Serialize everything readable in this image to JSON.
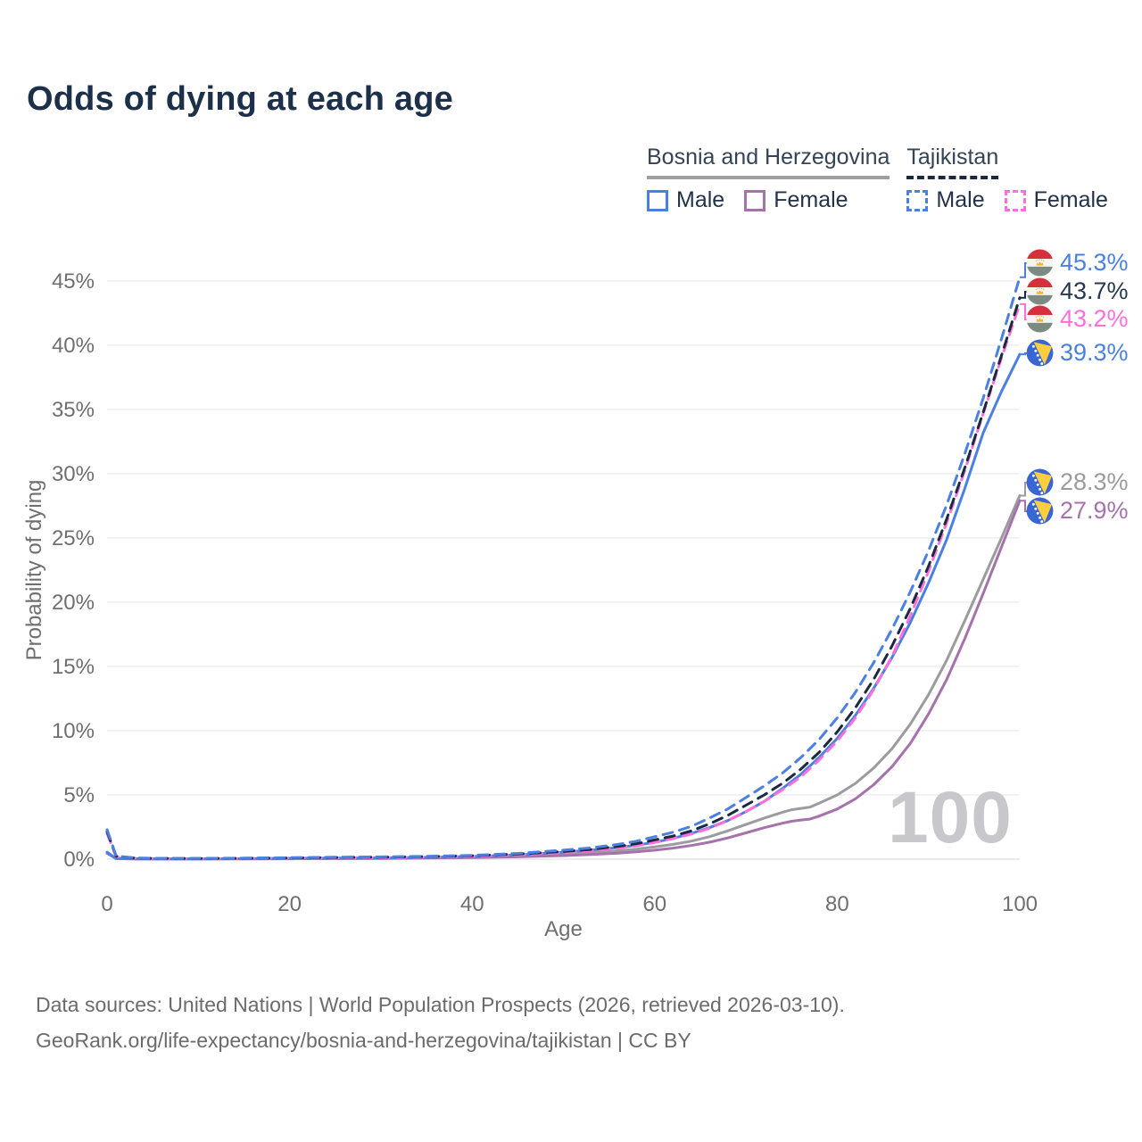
{
  "header": {
    "title": "Odds of dying at each age"
  },
  "legend": {
    "groups": [
      {
        "country": "Bosnia and Herzegovina",
        "line_style": "solid",
        "line_color": "#9e9ea3",
        "items": [
          {
            "label": "Male",
            "color": "#4a80e2",
            "box_style": "solid"
          },
          {
            "label": "Female",
            "color": "#a572ab",
            "box_style": "solid"
          }
        ]
      },
      {
        "country": "Tajikistan",
        "line_style": "dashed",
        "line_color": "#1b2940",
        "items": [
          {
            "label": "Male",
            "color": "#4a80e2",
            "box_style": "dashed"
          },
          {
            "label": "Female",
            "color": "#ff6fdb",
            "box_style": "dashed"
          }
        ]
      }
    ]
  },
  "footer": {
    "line1": "Data sources: United Nations | World Population Prospects (2026, retrieved 2026-03-10).",
    "line2": "GeoRank.org/life-expectancy/bosnia-and-herzegovina/tajikistan | CC BY"
  },
  "chart_data": {
    "type": "line",
    "title": "Odds of dying at each age",
    "xlabel": "Age",
    "ylabel": "Probability of dying",
    "xlim": [
      0,
      100
    ],
    "ylim_pct": [
      0,
      47
    ],
    "x_ticks": [
      0,
      20,
      40,
      60,
      80,
      100
    ],
    "y_ticks": [
      {
        "value": 0,
        "label": "0%"
      },
      {
        "value": 5,
        "label": "5%"
      },
      {
        "value": 10,
        "label": "10%"
      },
      {
        "value": 15,
        "label": "15%"
      },
      {
        "value": 20,
        "label": "20%"
      },
      {
        "value": 25,
        "label": "25%"
      },
      {
        "value": 30,
        "label": "30%"
      },
      {
        "value": 35,
        "label": "35%"
      },
      {
        "value": 40,
        "label": "40%"
      },
      {
        "value": 45,
        "label": "45%"
      }
    ],
    "grid": true,
    "legend_position": "top-right",
    "watermark": "100",
    "series": [
      {
        "id": "ba-both",
        "name": "Bosnia and Herzegovina",
        "sex": "Both",
        "color": "#9b9ba0",
        "style": "solid",
        "end_value_pct": 28.3,
        "points": [
          [
            0,
            0.5
          ],
          [
            1,
            0.05
          ],
          [
            3,
            0.03
          ],
          [
            5,
            0.02
          ],
          [
            10,
            0.02
          ],
          [
            15,
            0.03
          ],
          [
            20,
            0.05
          ],
          [
            25,
            0.06
          ],
          [
            30,
            0.08
          ],
          [
            35,
            0.11
          ],
          [
            40,
            0.16
          ],
          [
            45,
            0.25
          ],
          [
            50,
            0.4
          ],
          [
            53,
            0.5
          ],
          [
            56,
            0.65
          ],
          [
            58,
            0.78
          ],
          [
            60,
            0.95
          ],
          [
            62,
            1.15
          ],
          [
            64,
            1.4
          ],
          [
            66,
            1.75
          ],
          [
            68,
            2.2
          ],
          [
            70,
            2.7
          ],
          [
            72,
            3.2
          ],
          [
            74,
            3.65
          ],
          [
            75,
            3.85
          ],
          [
            76,
            3.95
          ],
          [
            77,
            4.05
          ],
          [
            78,
            4.35
          ],
          [
            80,
            5.0
          ],
          [
            82,
            5.9
          ],
          [
            84,
            7.1
          ],
          [
            86,
            8.6
          ],
          [
            88,
            10.5
          ],
          [
            90,
            12.8
          ],
          [
            92,
            15.5
          ],
          [
            94,
            18.6
          ],
          [
            96,
            21.8
          ],
          [
            98,
            25.0
          ],
          [
            100,
            28.3
          ]
        ]
      },
      {
        "id": "ba-female",
        "name": "Bosnia and Herzegovina",
        "sex": "Female",
        "color": "#a572ab",
        "style": "solid",
        "end_value_pct": 27.9,
        "points": [
          [
            0,
            0.45
          ],
          [
            1,
            0.04
          ],
          [
            3,
            0.02
          ],
          [
            5,
            0.015
          ],
          [
            10,
            0.015
          ],
          [
            15,
            0.02
          ],
          [
            20,
            0.03
          ],
          [
            25,
            0.04
          ],
          [
            30,
            0.05
          ],
          [
            35,
            0.08
          ],
          [
            40,
            0.12
          ],
          [
            45,
            0.18
          ],
          [
            50,
            0.28
          ],
          [
            53,
            0.36
          ],
          [
            56,
            0.47
          ],
          [
            58,
            0.57
          ],
          [
            60,
            0.7
          ],
          [
            62,
            0.86
          ],
          [
            64,
            1.06
          ],
          [
            66,
            1.32
          ],
          [
            68,
            1.65
          ],
          [
            70,
            2.05
          ],
          [
            72,
            2.45
          ],
          [
            74,
            2.8
          ],
          [
            75,
            2.95
          ],
          [
            76,
            3.05
          ],
          [
            77,
            3.12
          ],
          [
            78,
            3.35
          ],
          [
            80,
            3.9
          ],
          [
            82,
            4.7
          ],
          [
            84,
            5.8
          ],
          [
            86,
            7.2
          ],
          [
            88,
            9.0
          ],
          [
            90,
            11.3
          ],
          [
            92,
            14.0
          ],
          [
            94,
            17.2
          ],
          [
            96,
            20.7
          ],
          [
            98,
            24.3
          ],
          [
            100,
            27.9
          ]
        ]
      },
      {
        "id": "ba-male",
        "name": "Bosnia and Herzegovina",
        "sex": "Male",
        "color": "#4a80e2",
        "style": "solid",
        "end_value_pct": 39.3,
        "points": [
          [
            0,
            0.55
          ],
          [
            1,
            0.05
          ],
          [
            3,
            0.03
          ],
          [
            5,
            0.02
          ],
          [
            10,
            0.02
          ],
          [
            15,
            0.04
          ],
          [
            20,
            0.07
          ],
          [
            25,
            0.08
          ],
          [
            30,
            0.1
          ],
          [
            35,
            0.14
          ],
          [
            40,
            0.21
          ],
          [
            45,
            0.33
          ],
          [
            50,
            0.55
          ],
          [
            53,
            0.7
          ],
          [
            56,
            0.9
          ],
          [
            58,
            1.08
          ],
          [
            60,
            1.32
          ],
          [
            62,
            1.62
          ],
          [
            64,
            2.0
          ],
          [
            66,
            2.45
          ],
          [
            68,
            3.0
          ],
          [
            70,
            3.7
          ],
          [
            72,
            4.5
          ],
          [
            74,
            5.5
          ],
          [
            76,
            6.6
          ],
          [
            78,
            7.9
          ],
          [
            80,
            9.4
          ],
          [
            82,
            11.2
          ],
          [
            84,
            13.3
          ],
          [
            86,
            15.7
          ],
          [
            88,
            18.4
          ],
          [
            90,
            21.5
          ],
          [
            92,
            24.9
          ],
          [
            94,
            28.9
          ],
          [
            96,
            33.2
          ],
          [
            98,
            36.4
          ],
          [
            100,
            39.3
          ]
        ]
      },
      {
        "id": "tj-female",
        "name": "Tajikistan",
        "sex": "Female",
        "color": "#ff6fdb",
        "style": "dashed",
        "end_value_pct": 43.2,
        "points": [
          [
            0,
            2.0
          ],
          [
            1,
            0.2
          ],
          [
            3,
            0.08
          ],
          [
            5,
            0.05
          ],
          [
            10,
            0.04
          ],
          [
            15,
            0.05
          ],
          [
            20,
            0.07
          ],
          [
            25,
            0.09
          ],
          [
            30,
            0.12
          ],
          [
            35,
            0.16
          ],
          [
            40,
            0.22
          ],
          [
            45,
            0.33
          ],
          [
            50,
            0.52
          ],
          [
            53,
            0.66
          ],
          [
            56,
            0.86
          ],
          [
            58,
            1.05
          ],
          [
            60,
            1.3
          ],
          [
            62,
            1.6
          ],
          [
            64,
            1.95
          ],
          [
            66,
            2.4
          ],
          [
            68,
            3.0
          ],
          [
            70,
            3.7
          ],
          [
            72,
            4.5
          ],
          [
            74,
            5.4
          ],
          [
            76,
            6.4
          ],
          [
            78,
            7.7
          ],
          [
            80,
            9.2
          ],
          [
            82,
            11.0
          ],
          [
            84,
            13.2
          ],
          [
            86,
            15.8
          ],
          [
            88,
            18.9
          ],
          [
            90,
            22.4
          ],
          [
            92,
            26.2
          ],
          [
            94,
            30.3
          ],
          [
            96,
            34.7
          ],
          [
            98,
            39.0
          ],
          [
            100,
            43.2
          ]
        ]
      },
      {
        "id": "tj-both",
        "name": "Tajikistan",
        "sex": "Both",
        "color": "#1b2940",
        "style": "dashed",
        "end_value_pct": 43.7,
        "points": [
          [
            0,
            2.15
          ],
          [
            1,
            0.23
          ],
          [
            3,
            0.09
          ],
          [
            5,
            0.06
          ],
          [
            10,
            0.05
          ],
          [
            15,
            0.07
          ],
          [
            20,
            0.1
          ],
          [
            25,
            0.13
          ],
          [
            30,
            0.16
          ],
          [
            35,
            0.2
          ],
          [
            40,
            0.27
          ],
          [
            45,
            0.4
          ],
          [
            50,
            0.6
          ],
          [
            53,
            0.76
          ],
          [
            56,
            1.0
          ],
          [
            58,
            1.2
          ],
          [
            60,
            1.5
          ],
          [
            62,
            1.8
          ],
          [
            64,
            2.2
          ],
          [
            66,
            2.75
          ],
          [
            68,
            3.4
          ],
          [
            70,
            4.2
          ],
          [
            72,
            5.0
          ],
          [
            74,
            5.9
          ],
          [
            76,
            7.0
          ],
          [
            78,
            8.3
          ],
          [
            80,
            9.9
          ],
          [
            82,
            11.8
          ],
          [
            84,
            14.0
          ],
          [
            86,
            16.6
          ],
          [
            88,
            19.5
          ],
          [
            90,
            22.8
          ],
          [
            92,
            26.5
          ],
          [
            94,
            30.5
          ],
          [
            96,
            34.8
          ],
          [
            98,
            39.2
          ],
          [
            100,
            43.7
          ]
        ]
      },
      {
        "id": "tj-male",
        "name": "Tajikistan",
        "sex": "Male",
        "color": "#4a80e2",
        "style": "dashed",
        "end_value_pct": 45.3,
        "points": [
          [
            0,
            2.3
          ],
          [
            1,
            0.25
          ],
          [
            3,
            0.1
          ],
          [
            5,
            0.07
          ],
          [
            10,
            0.06
          ],
          [
            15,
            0.08
          ],
          [
            20,
            0.12
          ],
          [
            25,
            0.15
          ],
          [
            30,
            0.18
          ],
          [
            35,
            0.22
          ],
          [
            40,
            0.3
          ],
          [
            45,
            0.45
          ],
          [
            50,
            0.7
          ],
          [
            53,
            0.88
          ],
          [
            56,
            1.15
          ],
          [
            58,
            1.4
          ],
          [
            60,
            1.75
          ],
          [
            62,
            2.1
          ],
          [
            64,
            2.55
          ],
          [
            66,
            3.2
          ],
          [
            68,
            3.9
          ],
          [
            70,
            4.8
          ],
          [
            72,
            5.7
          ],
          [
            74,
            6.7
          ],
          [
            76,
            7.9
          ],
          [
            78,
            9.3
          ],
          [
            80,
            11.0
          ],
          [
            82,
            13.0
          ],
          [
            84,
            15.3
          ],
          [
            86,
            17.9
          ],
          [
            88,
            20.8
          ],
          [
            90,
            24.0
          ],
          [
            92,
            27.6
          ],
          [
            94,
            31.6
          ],
          [
            96,
            35.9
          ],
          [
            98,
            40.5
          ],
          [
            100,
            45.3
          ]
        ]
      }
    ],
    "end_labels": [
      {
        "text": "45.3%",
        "series": "tj-male",
        "flag": "tj",
        "color": "#4a80e2"
      },
      {
        "text": "43.7%",
        "series": "tj-both",
        "flag": "tj",
        "color": "#263750"
      },
      {
        "text": "43.2%",
        "series": "tj-female",
        "flag": "tj",
        "color": "#ff6fdb"
      },
      {
        "text": "39.3%",
        "series": "ba-male",
        "flag": "ba",
        "color": "#4a80e2"
      },
      {
        "text": "28.3%",
        "series": "ba-both",
        "flag": "ba",
        "color": "#9b9b9b"
      },
      {
        "text": "27.9%",
        "series": "ba-female",
        "flag": "ba",
        "color": "#a572ab"
      }
    ]
  }
}
